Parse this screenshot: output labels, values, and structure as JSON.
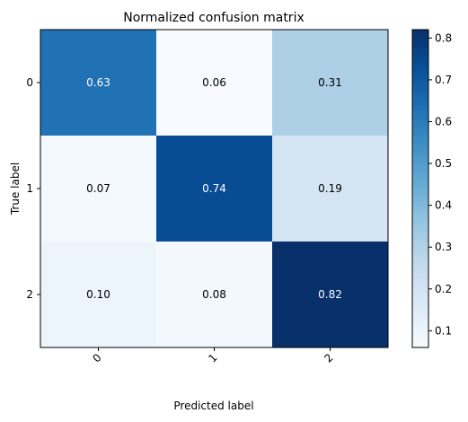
{
  "chart_data": {
    "type": "heatmap",
    "title": "Normalized confusion matrix",
    "xlabel": "Predicted label",
    "ylabel": "True label",
    "x_categories": [
      "0",
      "1",
      "2"
    ],
    "y_categories": [
      "0",
      "1",
      "2"
    ],
    "values": [
      [
        0.63,
        0.06,
        0.31
      ],
      [
        0.07,
        0.74,
        0.19
      ],
      [
        0.1,
        0.08,
        0.82
      ]
    ],
    "value_labels": [
      [
        "0.63",
        "0.06",
        "0.31"
      ],
      [
        "0.07",
        "0.74",
        "0.19"
      ],
      [
        "0.10",
        "0.08",
        "0.82"
      ]
    ],
    "colormap": "Blues",
    "colorbar": {
      "range": [
        0.06,
        0.82
      ],
      "ticks": [
        0.1,
        0.2,
        0.3,
        0.4,
        0.5,
        0.6,
        0.7,
        0.8
      ],
      "tick_labels": [
        "0.1",
        "0.2",
        "0.3",
        "0.4",
        "0.5",
        "0.6",
        "0.7",
        "0.8"
      ]
    },
    "x_tick_rotation_deg": 45,
    "text_color_threshold": 0.44,
    "grid": false
  }
}
